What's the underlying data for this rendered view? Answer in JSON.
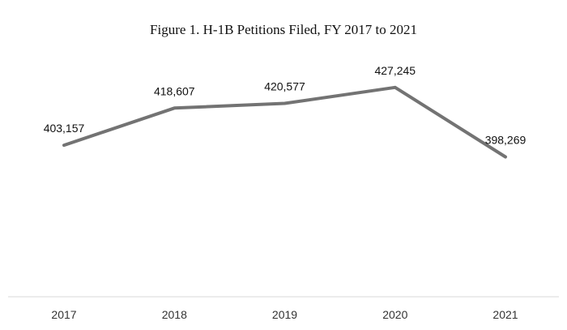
{
  "chart_data": {
    "type": "line",
    "title": "Figure 1. H-1B Petitions Filed, FY 2017 to 2021",
    "xlabel": "",
    "ylabel": "",
    "categories": [
      "2017",
      "2018",
      "2019",
      "2020",
      "2021"
    ],
    "series": [
      {
        "values": [
          403157,
          418607,
          420577,
          427245,
          398269
        ],
        "value_labels": [
          "403,157",
          "418,607",
          "420,577",
          "427,245",
          "398,269"
        ],
        "color": "#737373"
      }
    ],
    "ylim": [
      340000,
      440000
    ],
    "grid": false,
    "legend": "none"
  }
}
